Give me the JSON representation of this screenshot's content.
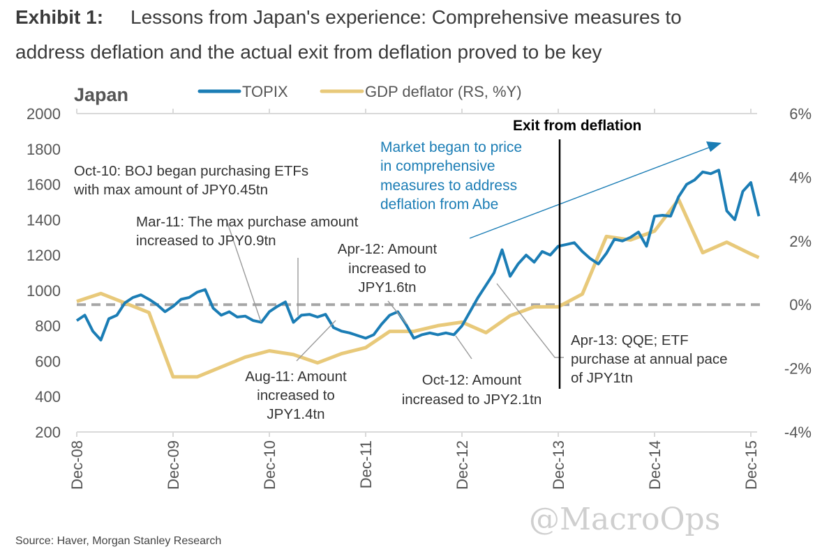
{
  "header": {
    "exhibit": "Exhibit 1:",
    "title_line1": "Lessons from Japan's experience: Comprehensive measures to",
    "title_line2": "address deflation and the actual exit from deflation proved to be key"
  },
  "chart_data": {
    "type": "line",
    "panel_label": "Japan",
    "legend_position": "top",
    "grid": false,
    "x_ticks": [
      "Dec-08",
      "Dec-09",
      "Dec-10",
      "Dec-11",
      "Dec-12",
      "Dec-13",
      "Dec-14",
      "Dec-15"
    ],
    "y_left": {
      "ticks": [
        "2000",
        "1800",
        "1600",
        "1400",
        "1200",
        "1000",
        "800",
        "600",
        "400",
        "200"
      ],
      "range": [
        200,
        2000
      ]
    },
    "y_right": {
      "ticks": [
        "6%",
        "4%",
        "2%",
        "0%",
        "-2%",
        "-4%"
      ],
      "range": [
        -4,
        6
      ]
    },
    "zero_line": {
      "axis": "right",
      "value": 0,
      "style": "dashed",
      "color": "#a6a6a6"
    },
    "series": [
      {
        "name": "TOPIX",
        "axis": "left",
        "color": "#1b7db5",
        "points": [
          [
            "2008-12",
            830
          ],
          [
            "2009-01",
            860
          ],
          [
            "2009-02",
            770
          ],
          [
            "2009-03",
            720
          ],
          [
            "2009-04",
            840
          ],
          [
            "2009-05",
            860
          ],
          [
            "2009-06",
            930
          ],
          [
            "2009-07",
            960
          ],
          [
            "2009-08",
            975
          ],
          [
            "2009-09",
            950
          ],
          [
            "2009-10",
            920
          ],
          [
            "2009-11",
            880
          ],
          [
            "2009-12",
            910
          ],
          [
            "2010-01",
            950
          ],
          [
            "2010-02",
            960
          ],
          [
            "2010-03",
            990
          ],
          [
            "2010-04",
            1005
          ],
          [
            "2010-05",
            900
          ],
          [
            "2010-06",
            860
          ],
          [
            "2010-07",
            880
          ],
          [
            "2010-08",
            850
          ],
          [
            "2010-09",
            855
          ],
          [
            "2010-10",
            830
          ],
          [
            "2010-11",
            820
          ],
          [
            "2010-12",
            880
          ],
          [
            "2011-01",
            910
          ],
          [
            "2011-02",
            935
          ],
          [
            "2011-03",
            820
          ],
          [
            "2011-04",
            860
          ],
          [
            "2011-05",
            865
          ],
          [
            "2011-06",
            850
          ],
          [
            "2011-07",
            865
          ],
          [
            "2011-08",
            790
          ],
          [
            "2011-09",
            770
          ],
          [
            "2011-10",
            760
          ],
          [
            "2011-11",
            745
          ],
          [
            "2011-12",
            730
          ],
          [
            "2012-01",
            750
          ],
          [
            "2012-02",
            810
          ],
          [
            "2012-03",
            860
          ],
          [
            "2012-04",
            880
          ],
          [
            "2012-05",
            810
          ],
          [
            "2012-06",
            730
          ],
          [
            "2012-07",
            750
          ],
          [
            "2012-08",
            760
          ],
          [
            "2012-09",
            750
          ],
          [
            "2012-10",
            760
          ],
          [
            "2012-11",
            750
          ],
          [
            "2012-12",
            800
          ],
          [
            "2013-01",
            880
          ],
          [
            "2013-02",
            960
          ],
          [
            "2013-03",
            1030
          ],
          [
            "2013-04",
            1100
          ],
          [
            "2013-05",
            1230
          ],
          [
            "2013-06",
            1080
          ],
          [
            "2013-07",
            1150
          ],
          [
            "2013-08",
            1200
          ],
          [
            "2013-09",
            1160
          ],
          [
            "2013-10",
            1220
          ],
          [
            "2013-11",
            1200
          ],
          [
            "2013-12",
            1250
          ],
          [
            "2014-01",
            1260
          ],
          [
            "2014-02",
            1270
          ],
          [
            "2014-03",
            1220
          ],
          [
            "2014-04",
            1180
          ],
          [
            "2014-05",
            1150
          ],
          [
            "2014-06",
            1210
          ],
          [
            "2014-07",
            1290
          ],
          [
            "2014-08",
            1280
          ],
          [
            "2014-09",
            1300
          ],
          [
            "2014-10",
            1330
          ],
          [
            "2014-11",
            1250
          ],
          [
            "2014-12",
            1420
          ],
          [
            "2015-01",
            1425
          ],
          [
            "2015-02",
            1420
          ],
          [
            "2015-03",
            1530
          ],
          [
            "2015-04",
            1600
          ],
          [
            "2015-05",
            1625
          ],
          [
            "2015-06",
            1670
          ],
          [
            "2015-07",
            1660
          ],
          [
            "2015-08",
            1680
          ],
          [
            "2015-09",
            1450
          ],
          [
            "2015-10",
            1400
          ],
          [
            "2015-11",
            1560
          ],
          [
            "2015-12",
            1610
          ],
          [
            "2016-01",
            1420
          ]
        ]
      },
      {
        "name": "GDP deflator (RS, %Y)",
        "axis": "right",
        "color": "#e8c97a",
        "points": [
          [
            "2008-12",
            0.1
          ],
          [
            "2009-03",
            0.35
          ],
          [
            "2009-09",
            -0.25
          ],
          [
            "2009-12",
            -2.27
          ],
          [
            "2010-03",
            -2.27
          ],
          [
            "2010-09",
            -1.65
          ],
          [
            "2010-12",
            -1.45
          ],
          [
            "2011-03",
            -1.57
          ],
          [
            "2011-06",
            -1.83
          ],
          [
            "2011-09",
            -1.54
          ],
          [
            "2011-12",
            -1.35
          ],
          [
            "2012-03",
            -0.84
          ],
          [
            "2012-06",
            -0.84
          ],
          [
            "2012-09",
            -0.66
          ],
          [
            "2012-12",
            -0.55
          ],
          [
            "2013-03",
            -0.88
          ],
          [
            "2013-06",
            -0.35
          ],
          [
            "2013-09",
            -0.07
          ],
          [
            "2013-12",
            -0.07
          ],
          [
            "2014-03",
            0.33
          ],
          [
            "2014-06",
            2.14
          ],
          [
            "2014-09",
            2.03
          ],
          [
            "2014-12",
            2.31
          ],
          [
            "2015-03",
            3.3
          ],
          [
            "2015-06",
            1.63
          ],
          [
            "2015-09",
            1.96
          ],
          [
            "2015-12",
            1.59
          ],
          [
            "2016-01",
            1.48
          ]
        ]
      }
    ],
    "annotations": {
      "oct10": [
        "Oct-10: BOJ began purchasing ETFs",
        "with max amount of JPY0.45tn"
      ],
      "mar11": [
        "Mar-11: The max purchase amount",
        "increased to JPY0.9tn"
      ],
      "aug11": [
        "Aug-11: Amount",
        "increased to",
        "JPY1.4tn"
      ],
      "apr12": [
        "Apr-12: Amount",
        "increased to",
        "JPY1.6tn"
      ],
      "oct12": [
        "Oct-12: Amount",
        "increased to JPY2.1tn"
      ],
      "apr13": [
        "Apr-13: QQE; ETF",
        "purchase at annual pace",
        "of JPY1tn"
      ],
      "market": [
        "Market began to price",
        "in comprehensive",
        "measures to address",
        "deflation from Abe"
      ],
      "exit": "Exit from deflation"
    }
  },
  "footer": {
    "source": "Source: Haver, Morgan Stanley Research",
    "watermark": "@MacroOps"
  }
}
